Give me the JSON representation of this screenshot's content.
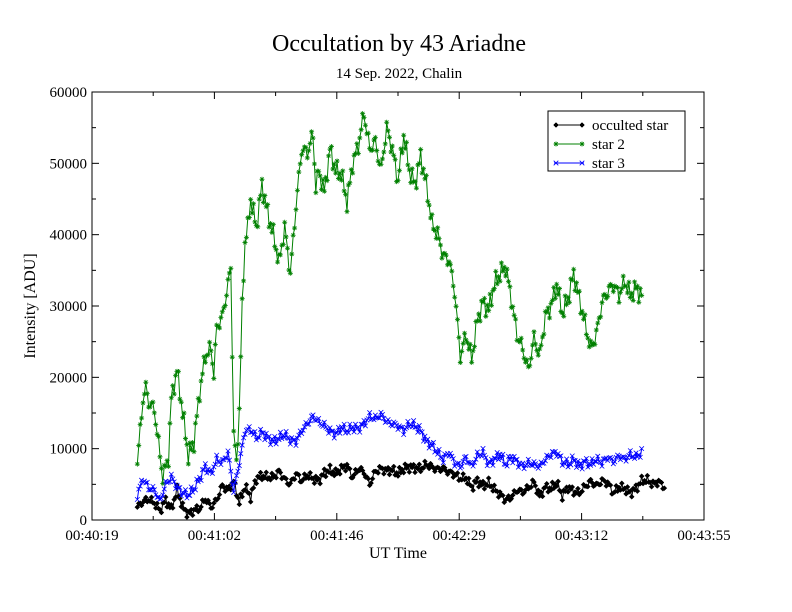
{
  "chart_data": {
    "type": "line",
    "title": "Occultation by 43 Ariadne",
    "subtitle": "14 Sep. 2022, Chalin",
    "xlabel": "UT Time",
    "ylabel": "Intensity [ADU]",
    "x_tick_labels": [
      "00:40:19",
      "00:41:02",
      "00:41:46",
      "00:42:29",
      "00:43:12",
      "00:43:55"
    ],
    "xlim_seconds_after_00_40_19": [
      0,
      216
    ],
    "y_ticks": [
      0,
      10000,
      20000,
      30000,
      40000,
      50000,
      60000
    ],
    "ylim": [
      0,
      60000
    ],
    "x_start_offset_s": 16,
    "x_step_s": 0.5,
    "grid": false,
    "legend_position": "top-right",
    "series": [
      {
        "name": "occulted star",
        "color": "#000000",
        "marker": "diamond",
        "anchors": [
          [
            16,
            1800
          ],
          [
            18,
            2600
          ],
          [
            20,
            2900
          ],
          [
            22,
            2400
          ],
          [
            24,
            1300
          ],
          [
            26,
            2800
          ],
          [
            28,
            1500
          ],
          [
            30,
            4200
          ],
          [
            32,
            1800
          ],
          [
            34,
            800
          ],
          [
            36,
            1400
          ],
          [
            38,
            1600
          ],
          [
            40,
            3000
          ],
          [
            42,
            1800
          ],
          [
            44,
            2800
          ],
          [
            46,
            4800
          ],
          [
            48,
            4200
          ],
          [
            50,
            5400
          ],
          [
            52,
            2400
          ],
          [
            54,
            4700
          ],
          [
            56,
            3200
          ],
          [
            58,
            5800
          ],
          [
            60,
            6200
          ],
          [
            62,
            6000
          ],
          [
            64,
            6000
          ],
          [
            66,
            6800
          ],
          [
            68,
            5700
          ],
          [
            70,
            5000
          ],
          [
            72,
            6500
          ],
          [
            74,
            5500
          ],
          [
            76,
            6300
          ],
          [
            78,
            5800
          ],
          [
            80,
            5500
          ],
          [
            82,
            6600
          ],
          [
            84,
            7000
          ],
          [
            86,
            6500
          ],
          [
            88,
            7200
          ],
          [
            90,
            7600
          ],
          [
            92,
            6000
          ],
          [
            94,
            7200
          ],
          [
            96,
            6700
          ],
          [
            98,
            5000
          ],
          [
            100,
            6800
          ],
          [
            102,
            7200
          ],
          [
            104,
            6900
          ],
          [
            106,
            7000
          ],
          [
            108,
            6500
          ],
          [
            110,
            7200
          ],
          [
            112,
            7400
          ],
          [
            114,
            7300
          ],
          [
            116,
            7200
          ],
          [
            118,
            7800
          ],
          [
            120,
            7400
          ],
          [
            122,
            7100
          ],
          [
            124,
            7200
          ],
          [
            126,
            6700
          ],
          [
            128,
            6400
          ],
          [
            130,
            5800
          ],
          [
            132,
            5900
          ],
          [
            134,
            4600
          ],
          [
            136,
            5500
          ],
          [
            138,
            4800
          ],
          [
            140,
            5200
          ],
          [
            142,
            4300
          ],
          [
            144,
            3600
          ],
          [
            146,
            2800
          ],
          [
            148,
            3200
          ],
          [
            150,
            4200
          ],
          [
            152,
            3900
          ],
          [
            154,
            4500
          ],
          [
            156,
            5300
          ],
          [
            158,
            3300
          ],
          [
            160,
            4600
          ],
          [
            162,
            4400
          ],
          [
            164,
            5200
          ],
          [
            166,
            3400
          ],
          [
            168,
            4600
          ],
          [
            170,
            4000
          ],
          [
            172,
            3800
          ],
          [
            174,
            4700
          ],
          [
            176,
            5400
          ],
          [
            178,
            4800
          ],
          [
            180,
            5500
          ],
          [
            182,
            5200
          ],
          [
            184,
            3800
          ],
          [
            186,
            4600
          ],
          [
            188,
            4400
          ],
          [
            190,
            3800
          ],
          [
            192,
            4400
          ],
          [
            194,
            5500
          ],
          [
            196,
            5600
          ],
          [
            198,
            5000
          ],
          [
            200,
            5400
          ],
          [
            202,
            4600
          ]
        ]
      },
      {
        "name": "star 2",
        "color": "#008000",
        "marker": "star",
        "anchors": [
          [
            16,
            8000
          ],
          [
            18,
            17000
          ],
          [
            19,
            18500
          ],
          [
            20,
            16500
          ],
          [
            22,
            15500
          ],
          [
            24,
            9000
          ],
          [
            25,
            6000
          ],
          [
            27,
            8800
          ],
          [
            28,
            17000
          ],
          [
            30,
            21000
          ],
          [
            32,
            15000
          ],
          [
            34,
            9000
          ],
          [
            36,
            11000
          ],
          [
            38,
            18000
          ],
          [
            40,
            23000
          ],
          [
            42,
            24000
          ],
          [
            43,
            20500
          ],
          [
            44,
            27000
          ],
          [
            46,
            28500
          ],
          [
            48,
            33000
          ],
          [
            49,
            35500
          ],
          [
            50,
            12000
          ],
          [
            51,
            8000
          ],
          [
            52,
            15500
          ],
          [
            53,
            30000
          ],
          [
            54,
            39000
          ],
          [
            55,
            41000
          ],
          [
            56,
            45000
          ],
          [
            58,
            41000
          ],
          [
            60,
            47000
          ],
          [
            62,
            43000
          ],
          [
            64,
            40000
          ],
          [
            66,
            36000
          ],
          [
            68,
            41000
          ],
          [
            70,
            34500
          ],
          [
            72,
            44000
          ],
          [
            74,
            52000
          ],
          [
            76,
            51500
          ],
          [
            78,
            54000
          ],
          [
            79,
            46500
          ],
          [
            80,
            49000
          ],
          [
            82,
            46000
          ],
          [
            84,
            52000
          ],
          [
            86,
            49000
          ],
          [
            88,
            48500
          ],
          [
            90,
            44500
          ],
          [
            92,
            50000
          ],
          [
            94,
            52500
          ],
          [
            96,
            57000
          ],
          [
            98,
            52000
          ],
          [
            100,
            53000
          ],
          [
            102,
            49000
          ],
          [
            104,
            55000
          ],
          [
            106,
            52000
          ],
          [
            108,
            47500
          ],
          [
            110,
            54000
          ],
          [
            112,
            49000
          ],
          [
            114,
            47000
          ],
          [
            116,
            51000
          ],
          [
            118,
            47000
          ],
          [
            120,
            41500
          ],
          [
            122,
            40000
          ],
          [
            124,
            37000
          ],
          [
            126,
            36500
          ],
          [
            128,
            32000
          ],
          [
            130,
            23000
          ],
          [
            132,
            26000
          ],
          [
            134,
            22500
          ],
          [
            136,
            28000
          ],
          [
            138,
            30500
          ],
          [
            140,
            29500
          ],
          [
            142,
            33000
          ],
          [
            144,
            34500
          ],
          [
            146,
            35500
          ],
          [
            148,
            31000
          ],
          [
            150,
            26000
          ],
          [
            152,
            24000
          ],
          [
            154,
            21000
          ],
          [
            156,
            25500
          ],
          [
            158,
            23000
          ],
          [
            160,
            28500
          ],
          [
            162,
            30000
          ],
          [
            164,
            33000
          ],
          [
            166,
            29000
          ],
          [
            168,
            31000
          ],
          [
            170,
            34500
          ],
          [
            172,
            31000
          ],
          [
            174,
            27500
          ],
          [
            176,
            24000
          ],
          [
            178,
            26000
          ],
          [
            180,
            30500
          ],
          [
            182,
            32000
          ],
          [
            184,
            33000
          ],
          [
            186,
            31500
          ],
          [
            188,
            33500
          ],
          [
            190,
            31500
          ],
          [
            192,
            32500
          ],
          [
            194,
            31500
          ]
        ]
      },
      {
        "name": "star 3",
        "color": "#0000ff",
        "marker": "x",
        "anchors": [
          [
            16,
            3500
          ],
          [
            18,
            5800
          ],
          [
            20,
            4500
          ],
          [
            22,
            4200
          ],
          [
            24,
            2600
          ],
          [
            26,
            5000
          ],
          [
            28,
            6000
          ],
          [
            30,
            4600
          ],
          [
            32,
            3800
          ],
          [
            34,
            3500
          ],
          [
            36,
            4400
          ],
          [
            38,
            5800
          ],
          [
            40,
            7500
          ],
          [
            42,
            6500
          ],
          [
            44,
            8500
          ],
          [
            46,
            8000
          ],
          [
            48,
            9500
          ],
          [
            50,
            4000
          ],
          [
            52,
            8000
          ],
          [
            54,
            12500
          ],
          [
            56,
            12700
          ],
          [
            58,
            11500
          ],
          [
            60,
            12300
          ],
          [
            62,
            11500
          ],
          [
            64,
            11000
          ],
          [
            66,
            11500
          ],
          [
            68,
            12000
          ],
          [
            70,
            11200
          ],
          [
            72,
            11000
          ],
          [
            74,
            12500
          ],
          [
            76,
            13500
          ],
          [
            78,
            14500
          ],
          [
            80,
            13800
          ],
          [
            82,
            13200
          ],
          [
            84,
            12500
          ],
          [
            86,
            12000
          ],
          [
            88,
            13000
          ],
          [
            90,
            12500
          ],
          [
            92,
            13000
          ],
          [
            94,
            12800
          ],
          [
            96,
            13500
          ],
          [
            98,
            14500
          ],
          [
            100,
            14200
          ],
          [
            102,
            14800
          ],
          [
            104,
            13800
          ],
          [
            106,
            13500
          ],
          [
            108,
            13200
          ],
          [
            110,
            12500
          ],
          [
            112,
            13500
          ],
          [
            114,
            13200
          ],
          [
            116,
            12500
          ],
          [
            118,
            11000
          ],
          [
            120,
            10500
          ],
          [
            122,
            9500
          ],
          [
            124,
            8500
          ],
          [
            126,
            9500
          ],
          [
            128,
            8000
          ],
          [
            130,
            7500
          ],
          [
            132,
            8800
          ],
          [
            134,
            7500
          ],
          [
            136,
            9000
          ],
          [
            138,
            9500
          ],
          [
            140,
            7800
          ],
          [
            142,
            8500
          ],
          [
            144,
            9200
          ],
          [
            146,
            7800
          ],
          [
            148,
            8800
          ],
          [
            150,
            8200
          ],
          [
            152,
            7500
          ],
          [
            154,
            8000
          ],
          [
            156,
            7800
          ],
          [
            158,
            7500
          ],
          [
            160,
            8500
          ],
          [
            162,
            9200
          ],
          [
            164,
            9500
          ],
          [
            166,
            8200
          ],
          [
            168,
            7800
          ],
          [
            170,
            8500
          ],
          [
            172,
            7500
          ],
          [
            174,
            8200
          ],
          [
            176,
            7800
          ],
          [
            178,
            8500
          ],
          [
            180,
            8000
          ],
          [
            182,
            8800
          ],
          [
            184,
            8200
          ],
          [
            186,
            9000
          ],
          [
            188,
            8500
          ],
          [
            190,
            9200
          ],
          [
            192,
            8800
          ],
          [
            194,
            9500
          ]
        ]
      }
    ]
  }
}
